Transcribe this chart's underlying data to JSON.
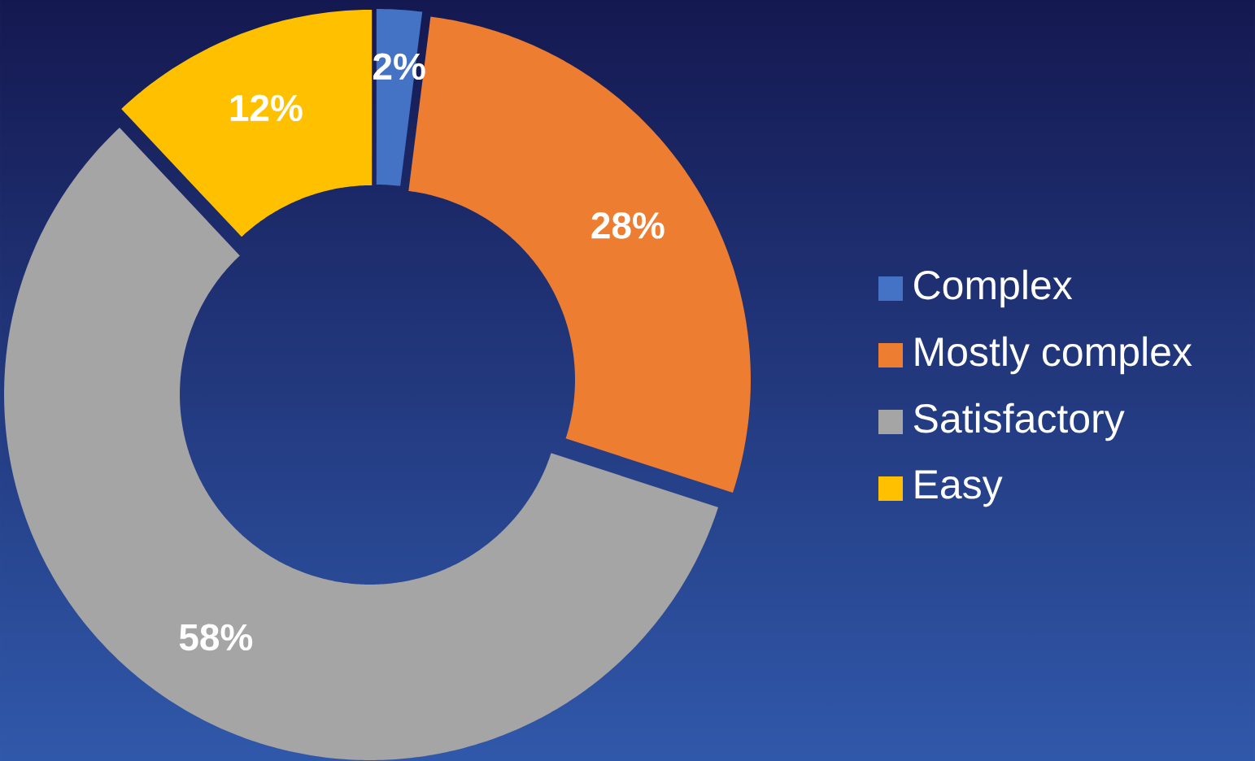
{
  "chart_data": {
    "type": "donut",
    "categories": [
      "Complex",
      "Mostly complex",
      "Satisfactory",
      "Easy"
    ],
    "values": [
      2,
      28,
      58,
      12
    ],
    "colors": [
      "#4472c4",
      "#ed7d31",
      "#a5a5a5",
      "#ffc000"
    ],
    "value_labels": [
      "2%",
      "28%",
      "58%",
      "12%"
    ],
    "legend": "right"
  }
}
